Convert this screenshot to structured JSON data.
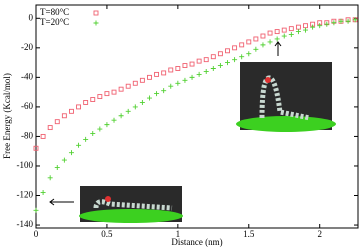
{
  "chart_data": {
    "type": "scatter",
    "xlabel": "Distance (nm)",
    "ylabel": "Free Energy (Kcal/mol)",
    "x": [
      0,
      0.05,
      0.1,
      0.15,
      0.2,
      0.25,
      0.3,
      0.35,
      0.4,
      0.45,
      0.5,
      0.55,
      0.6,
      0.65,
      0.7,
      0.75,
      0.8,
      0.85,
      0.9,
      0.95,
      1,
      1.05,
      1.1,
      1.15,
      1.2,
      1.25,
      1.3,
      1.35,
      1.4,
      1.45,
      1.5,
      1.55,
      1.6,
      1.65,
      1.7,
      1.75,
      1.8,
      1.85,
      1.9,
      1.95,
      2,
      2.05,
      2.1,
      2.15,
      2.2,
      2.25
    ],
    "series": [
      {
        "name": "T=80°C",
        "color": "#f06070",
        "marker": "square",
        "values": [
          -88,
          -80,
          -74,
          -70,
          -66,
          -63,
          -60,
          -57,
          -55,
          -53,
          -51,
          -50,
          -48,
          -46,
          -44,
          -42,
          -40,
          -38,
          -37,
          -35,
          -34,
          -32,
          -31,
          -29,
          -28,
          -26,
          -24,
          -22,
          -20,
          -18,
          -16,
          -14,
          -12,
          -10,
          -9,
          -8,
          -7,
          -6,
          -5,
          -4,
          -3,
          -3,
          -2,
          -2,
          -1,
          -1
        ]
      },
      {
        "name": "T=20°C",
        "color": "#50d030",
        "marker": "plus",
        "values": [
          -130,
          -118,
          -108,
          -101,
          -96,
          -91,
          -86,
          -82,
          -78,
          -75,
          -72,
          -69,
          -66,
          -63,
          -60,
          -57,
          -54,
          -51,
          -49,
          -46,
          -44,
          -42,
          -40,
          -38,
          -36,
          -34,
          -32,
          -30,
          -28,
          -26,
          -24,
          -21,
          -18,
          -16,
          -14,
          -12,
          -11,
          -9,
          -8,
          -6,
          -5,
          -4,
          -3,
          -2,
          -2,
          -1
        ]
      }
    ],
    "xlim": [
      0,
      2.27
    ],
    "xticks": [
      0,
      0.5,
      1,
      1.5,
      2
    ],
    "ylim": [
      -142,
      9
    ],
    "yticks": [
      -140,
      -120,
      -100,
      -80,
      -60,
      -40,
      -20,
      0
    ],
    "legend": "upper left"
  }
}
